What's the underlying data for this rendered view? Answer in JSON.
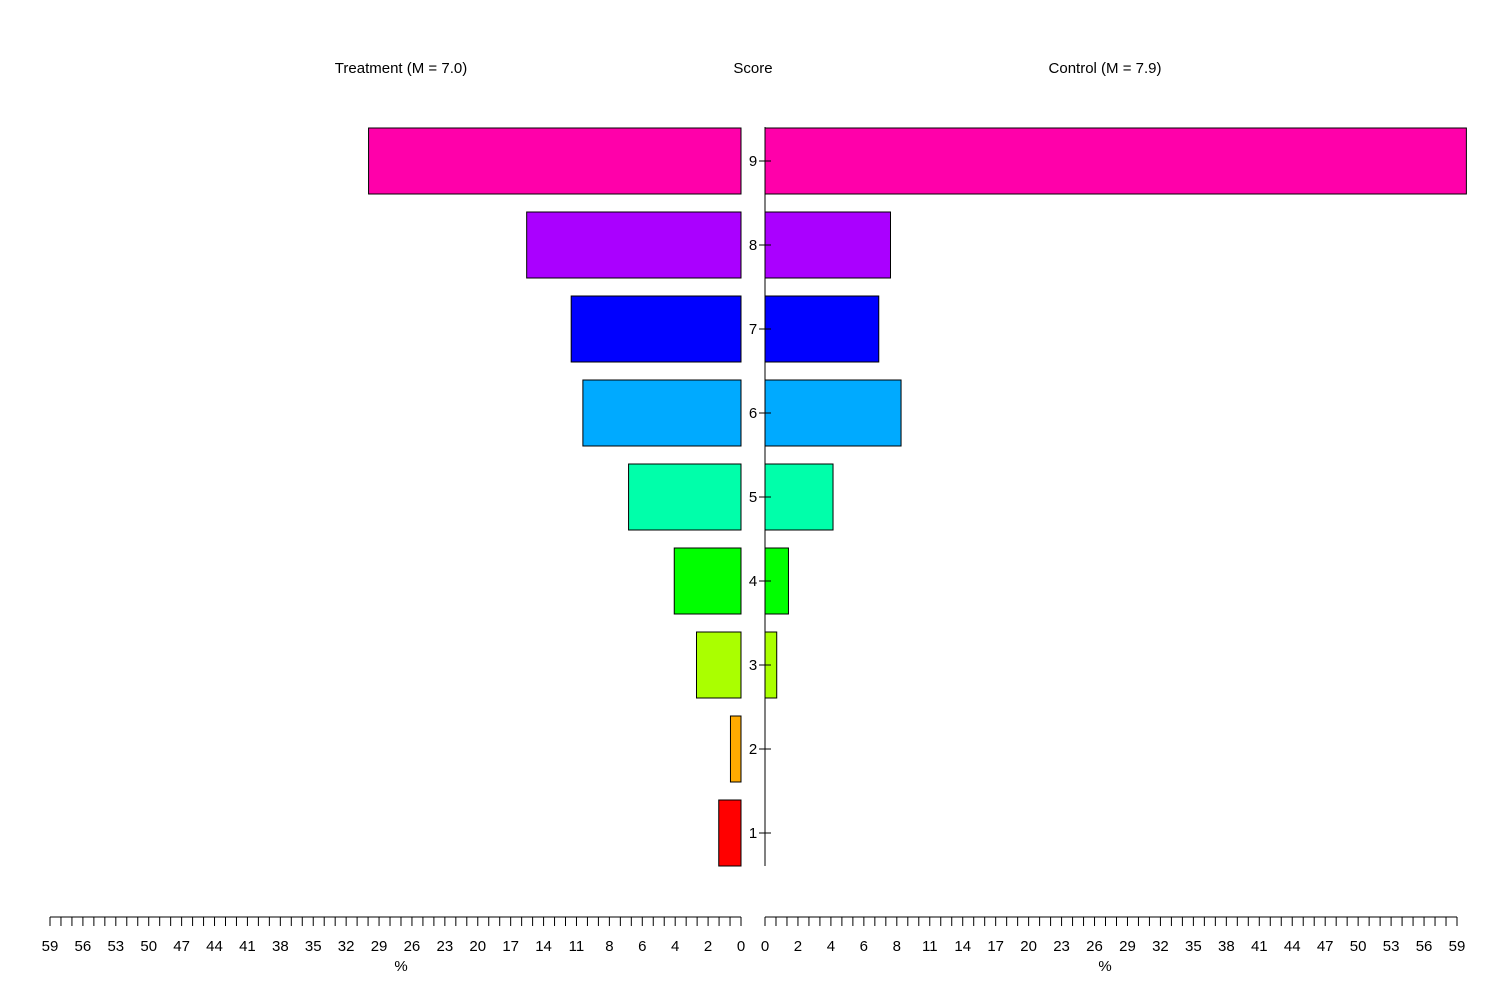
{
  "chart_data": {
    "type": "bar",
    "layout": "back-to-back horizontal bars",
    "center_label": "Score",
    "categories": [
      "1",
      "2",
      "3",
      "4",
      "5",
      "6",
      "7",
      "8",
      "9"
    ],
    "series": [
      {
        "name": "Treatment (M = 7.0)",
        "side": "left",
        "values": [
          1.9,
          0.9,
          3.8,
          5.7,
          9.6,
          13.5,
          14.5,
          18.3,
          31.8
        ]
      },
      {
        "name": "Control (M = 7.9)",
        "side": "right",
        "values": [
          0,
          0,
          1.0,
          2.0,
          5.8,
          11.6,
          9.7,
          10.7,
          59.8
        ]
      }
    ],
    "colors": [
      "#ff0000",
      "#ffaa00",
      "#aaff00",
      "#00ff00",
      "#00ffaa",
      "#00aaff",
      "#0000ff",
      "#aa00ff",
      "#ff00aa"
    ],
    "xlim": [
      0,
      59
    ],
    "xticklabels": [
      "0",
      "2",
      "4",
      "6",
      "8",
      "11",
      "14",
      "17",
      "20",
      "23",
      "26",
      "29",
      "32",
      "35",
      "38",
      "41",
      "44",
      "47",
      "50",
      "53",
      "56",
      "59"
    ],
    "xlabel": "%",
    "grid": false,
    "legend": "none"
  }
}
